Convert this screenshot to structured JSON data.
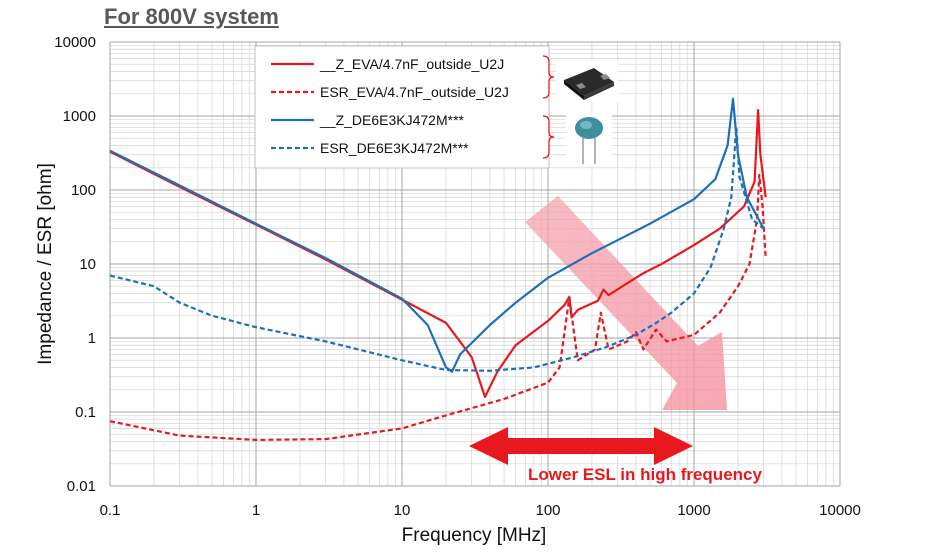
{
  "title": "For 800V system",
  "chart_data": {
    "type": "line",
    "title": "For 800V system",
    "xlabel": "Frequency [MHz]",
    "ylabel": "Impedance / ESR [ohm]",
    "x_scale": "log",
    "y_scale": "log",
    "xlim": [
      0.1,
      10000
    ],
    "ylim": [
      0.01,
      10000
    ],
    "x_ticks": [
      "0.1",
      "1",
      "10",
      "100",
      "1000",
      "10000"
    ],
    "y_ticks": [
      "10000",
      "1000",
      "100",
      "10",
      "1",
      "0.1",
      "0.01"
    ],
    "grid": true,
    "legend_position": "top-center",
    "series": [
      {
        "name": "__Z_EVA/4.7nF_outside_U2J",
        "color": "#e8191e",
        "dash": "solid",
        "points": [
          [
            0.1,
            330
          ],
          [
            0.3,
            110
          ],
          [
            1,
            34
          ],
          [
            3,
            11.5
          ],
          [
            10,
            3.3
          ],
          [
            20,
            1.6
          ],
          [
            30,
            0.55
          ],
          [
            37,
            0.16
          ],
          [
            45,
            0.35
          ],
          [
            60,
            0.8
          ],
          [
            100,
            1.7
          ],
          [
            130,
            2.8
          ],
          [
            140,
            3.6
          ],
          [
            145,
            1.9
          ],
          [
            160,
            2.4
          ],
          [
            220,
            3.2
          ],
          [
            240,
            4.5
          ],
          [
            260,
            3.8
          ],
          [
            350,
            5.5
          ],
          [
            450,
            7.5
          ],
          [
            600,
            10
          ],
          [
            1000,
            18
          ],
          [
            1500,
            30
          ],
          [
            2200,
            60
          ],
          [
            2600,
            130
          ],
          [
            2750,
            1200
          ],
          [
            2850,
            300
          ],
          [
            3100,
            80
          ]
        ]
      },
      {
        "name": "ESR_EVA/4.7nF_outside_U2J",
        "color": "#e8191e",
        "dash": "dashed",
        "points": [
          [
            0.1,
            0.075
          ],
          [
            0.3,
            0.048
          ],
          [
            1,
            0.042
          ],
          [
            3,
            0.043
          ],
          [
            10,
            0.06
          ],
          [
            20,
            0.09
          ],
          [
            50,
            0.15
          ],
          [
            100,
            0.25
          ],
          [
            120,
            0.4
          ],
          [
            140,
            3.5
          ],
          [
            160,
            0.5
          ],
          [
            210,
            0.7
          ],
          [
            230,
            2.2
          ],
          [
            260,
            0.7
          ],
          [
            350,
            0.9
          ],
          [
            400,
            1.2
          ],
          [
            450,
            0.7
          ],
          [
            550,
            1.3
          ],
          [
            650,
            0.9
          ],
          [
            1000,
            1.1
          ],
          [
            1500,
            2.2
          ],
          [
            2000,
            5
          ],
          [
            2400,
            10
          ],
          [
            2700,
            40
          ],
          [
            2800,
            160
          ],
          [
            2950,
            60
          ],
          [
            3100,
            12
          ]
        ]
      },
      {
        "name": "__Z_DE6E3KJ472M***",
        "color": "#1f6fb8",
        "dash": "solid",
        "points": [
          [
            0.1,
            340
          ],
          [
            0.3,
            115
          ],
          [
            1,
            35
          ],
          [
            3,
            12
          ],
          [
            10,
            3.4
          ],
          [
            15,
            1.5
          ],
          [
            20,
            0.4
          ],
          [
            22,
            0.35
          ],
          [
            25,
            0.6
          ],
          [
            40,
            1.5
          ],
          [
            60,
            3
          ],
          [
            100,
            6.5
          ],
          [
            200,
            14
          ],
          [
            500,
            35
          ],
          [
            1000,
            75
          ],
          [
            1400,
            140
          ],
          [
            1700,
            400
          ],
          [
            1850,
            1700
          ],
          [
            2000,
            300
          ],
          [
            2300,
            80
          ],
          [
            3000,
            30
          ]
        ]
      },
      {
        "name": "ESR_DE6E3KJ472M***",
        "color": "#1f6fb8",
        "dash": "dashed",
        "points": [
          [
            0.1,
            7
          ],
          [
            0.2,
            5
          ],
          [
            0.3,
            3
          ],
          [
            0.5,
            2
          ],
          [
            1,
            1.4
          ],
          [
            3,
            0.9
          ],
          [
            10,
            0.5
          ],
          [
            20,
            0.37
          ],
          [
            40,
            0.36
          ],
          [
            80,
            0.4
          ],
          [
            150,
            0.55
          ],
          [
            250,
            0.75
          ],
          [
            400,
            1.1
          ],
          [
            550,
            1.6
          ],
          [
            700,
            2.2
          ],
          [
            1000,
            4
          ],
          [
            1300,
            9
          ],
          [
            1600,
            30
          ],
          [
            1800,
            80
          ],
          [
            1950,
            700
          ],
          [
            2050,
            150
          ],
          [
            2500,
            40
          ],
          [
            3000,
            30
          ]
        ]
      }
    ],
    "annotations": [
      {
        "text": "Lower ESL in high frequency",
        "color": "#e8191e"
      }
    ],
    "legend_icons": [
      "smd-capacitor-photo",
      "disc-capacitor-photo"
    ]
  }
}
